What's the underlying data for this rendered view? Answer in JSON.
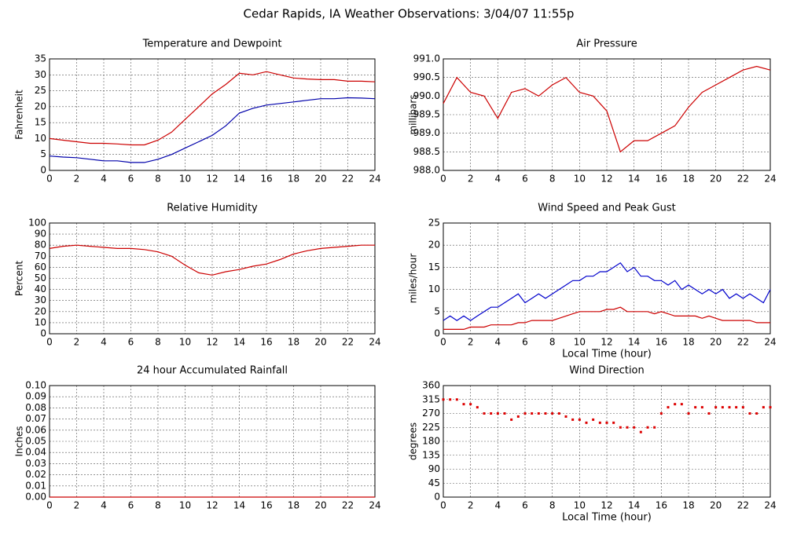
{
  "title": "Cedar Rapids, IA Weather Observations: 3/04/07 11:55p",
  "chart_data": [
    {
      "type": "line",
      "title": "Temperature and Dewpoint",
      "ylabel": "Fahrenheit",
      "x": [
        0,
        1,
        2,
        3,
        4,
        5,
        6,
        7,
        8,
        9,
        10,
        11,
        12,
        13,
        14,
        15,
        16,
        17,
        18,
        19,
        20,
        21,
        22,
        23,
        24
      ],
      "series": [
        {
          "color": "#cc0000",
          "values": [
            10,
            9.5,
            9,
            8.5,
            8.5,
            8.3,
            8,
            8,
            9.5,
            12,
            16,
            20,
            24,
            27,
            30.5,
            30,
            31,
            30,
            29,
            28.7,
            28.5,
            28.5,
            28,
            28,
            27.8
          ]
        },
        {
          "color": "#0000aa",
          "values": [
            4.5,
            4.2,
            4,
            3.5,
            3,
            3,
            2.5,
            2.5,
            3.5,
            5,
            7,
            9,
            11,
            14,
            18,
            19.5,
            20.5,
            21,
            21.5,
            22,
            22.5,
            22.5,
            22.8,
            22.7,
            22.5
          ]
        }
      ],
      "xlim": [
        0,
        24
      ],
      "xticks": [
        0,
        2,
        4,
        6,
        8,
        10,
        12,
        14,
        16,
        18,
        20,
        22,
        24
      ],
      "ylim": [
        0,
        35
      ],
      "yticks": [
        0,
        5,
        10,
        15,
        20,
        25,
        30,
        35
      ],
      "grid": true
    },
    {
      "type": "line",
      "title": "Air Pressure",
      "ylabel": "millibars",
      "x": [
        0,
        1,
        2,
        3,
        4,
        5,
        6,
        7,
        8,
        9,
        10,
        11,
        12,
        13,
        14,
        15,
        16,
        17,
        18,
        19,
        20,
        21,
        22,
        23,
        24
      ],
      "series": [
        {
          "color": "#cc0000",
          "values": [
            989.8,
            990.5,
            990.1,
            990.0,
            989.4,
            990.1,
            990.2,
            990.0,
            990.3,
            990.5,
            990.1,
            990.0,
            989.6,
            988.5,
            988.8,
            988.8,
            989.0,
            989.2,
            989.7,
            990.1,
            990.3,
            990.5,
            990.7,
            990.8,
            990.7
          ]
        }
      ],
      "xlim": [
        0,
        24
      ],
      "xticks": [
        0,
        2,
        4,
        6,
        8,
        10,
        12,
        14,
        16,
        18,
        20,
        22,
        24
      ],
      "ylim": [
        988,
        991
      ],
      "yticks": [
        {
          "value": 988,
          "label": "988.0"
        },
        {
          "value": 988.5,
          "label": "988.5"
        },
        {
          "value": 989,
          "label": "989.0"
        },
        {
          "value": 989.5,
          "label": "989.5"
        },
        {
          "value": 990,
          "label": "990.0"
        },
        {
          "value": 990.5,
          "label": "990.5"
        },
        {
          "value": 991,
          "label": "991.0"
        }
      ],
      "grid": true
    },
    {
      "type": "line",
      "title": "Relative Humidity",
      "ylabel": "Percent",
      "x": [
        0,
        1,
        2,
        3,
        4,
        5,
        6,
        7,
        8,
        9,
        10,
        11,
        12,
        13,
        14,
        15,
        16,
        17,
        18,
        19,
        20,
        21,
        22,
        23,
        24
      ],
      "series": [
        {
          "color": "#cc0000",
          "values": [
            77,
            79,
            80,
            79,
            78,
            77,
            77,
            76,
            74,
            70,
            62,
            55,
            53,
            56,
            58,
            61,
            63,
            67,
            72,
            75,
            77,
            78,
            79,
            80,
            80
          ]
        }
      ],
      "xlim": [
        0,
        24
      ],
      "xticks": [
        0,
        2,
        4,
        6,
        8,
        10,
        12,
        14,
        16,
        18,
        20,
        22,
        24
      ],
      "ylim": [
        0,
        100
      ],
      "yticks": [
        0,
        10,
        20,
        30,
        40,
        50,
        60,
        70,
        80,
        90,
        100
      ],
      "grid": true
    },
    {
      "type": "line",
      "title": "Wind Speed and Peak Gust",
      "ylabel": "miles/hour",
      "xlabel": "Local Time (hour)",
      "x": [
        0,
        0.5,
        1,
        1.5,
        2,
        2.5,
        3,
        3.5,
        4,
        4.5,
        5,
        5.5,
        6,
        6.5,
        7,
        7.5,
        8,
        8.5,
        9,
        9.5,
        10,
        10.5,
        11,
        11.5,
        12,
        12.5,
        13,
        13.5,
        14,
        14.5,
        15,
        15.5,
        16,
        16.5,
        17,
        17.5,
        18,
        18.5,
        19,
        19.5,
        20,
        20.5,
        21,
        21.5,
        22,
        22.5,
        23,
        23.5,
        24
      ],
      "series": [
        {
          "color": "#0000cc",
          "values": [
            3,
            4,
            3,
            4,
            3,
            4,
            5,
            6,
            6,
            7,
            8,
            9,
            7,
            8,
            9,
            8,
            9,
            10,
            11,
            12,
            12,
            13,
            13,
            14,
            14,
            15,
            16,
            14,
            15,
            13,
            13,
            12,
            12,
            11,
            12,
            10,
            11,
            10,
            9,
            10,
            9,
            10,
            8,
            9,
            8,
            9,
            8,
            7,
            10
          ]
        },
        {
          "color": "#cc0000",
          "values": [
            1,
            1,
            1,
            1,
            1.5,
            1.5,
            1.5,
            2,
            2,
            2,
            2,
            2.5,
            2.5,
            3,
            3,
            3,
            3,
            3.5,
            4,
            4.5,
            5,
            5,
            5,
            5,
            5.5,
            5.5,
            6,
            5,
            5,
            5,
            5,
            4.5,
            5,
            4.5,
            4,
            4,
            4,
            4,
            3.5,
            4,
            3.5,
            3,
            3,
            3,
            3,
            3,
            2.5,
            2.5,
            2.5
          ]
        }
      ],
      "xlim": [
        0,
        24
      ],
      "xticks": [
        0,
        2,
        4,
        6,
        8,
        10,
        12,
        14,
        16,
        18,
        20,
        22,
        24
      ],
      "ylim": [
        0,
        25
      ],
      "yticks": [
        0,
        5,
        10,
        15,
        20,
        25
      ],
      "grid": true
    },
    {
      "type": "line",
      "title": "24 hour Accumulated Rainfall",
      "ylabel": "Inches",
      "x": [
        0,
        1,
        2,
        3,
        4,
        5,
        6,
        7,
        8,
        9,
        10,
        11,
        12,
        13,
        14,
        15,
        16,
        17,
        18,
        19,
        20,
        21,
        22,
        23,
        24
      ],
      "series": [
        {
          "color": "#cc0000",
          "values": [
            0,
            0,
            0,
            0,
            0,
            0,
            0,
            0,
            0,
            0,
            0,
            0,
            0,
            0,
            0,
            0,
            0,
            0,
            0,
            0,
            0,
            0,
            0,
            0,
            0
          ]
        }
      ],
      "xlim": [
        0,
        24
      ],
      "xticks": [
        0,
        2,
        4,
        6,
        8,
        10,
        12,
        14,
        16,
        18,
        20,
        22,
        24
      ],
      "ylim": [
        0,
        0.1
      ],
      "yticks": [
        {
          "value": 0,
          "label": "0.00"
        },
        {
          "value": 0.01,
          "label": "0.01"
        },
        {
          "value": 0.02,
          "label": "0.02"
        },
        {
          "value": 0.03,
          "label": "0.03"
        },
        {
          "value": 0.04,
          "label": "0.04"
        },
        {
          "value": 0.05,
          "label": "0.05"
        },
        {
          "value": 0.06,
          "label": "0.06"
        },
        {
          "value": 0.07,
          "label": "0.07"
        },
        {
          "value": 0.08,
          "label": "0.08"
        },
        {
          "value": 0.09,
          "label": "0.09"
        },
        {
          "value": 0.1,
          "label": "0.10"
        }
      ],
      "grid": true
    },
    {
      "type": "scatter",
      "title": "Wind Direction",
      "ylabel": "degrees",
      "xlabel": "Local Time (hour)",
      "x": [
        0,
        0.5,
        1,
        1.5,
        2,
        2.5,
        3,
        3.5,
        4,
        4.5,
        5,
        5.5,
        6,
        6.5,
        7,
        7.5,
        8,
        8.5,
        9,
        9.5,
        10,
        10.5,
        11,
        11.5,
        12,
        12.5,
        13,
        13.5,
        14,
        14.5,
        15,
        15.5,
        16,
        16.5,
        17,
        17.5,
        18,
        18.5,
        19,
        19.5,
        20,
        20.5,
        21,
        21.5,
        22,
        22.5,
        23,
        23.5,
        24
      ],
      "series": [
        {
          "color": "#dd0000",
          "values": [
            315,
            315,
            315,
            300,
            300,
            290,
            270,
            270,
            270,
            270,
            250,
            260,
            270,
            270,
            270,
            270,
            270,
            270,
            260,
            250,
            250,
            240,
            250,
            240,
            240,
            240,
            225,
            225,
            225,
            210,
            225,
            225,
            270,
            290,
            300,
            300,
            270,
            290,
            290,
            270,
            290,
            290,
            290,
            290,
            290,
            270,
            270,
            290,
            290
          ]
        }
      ],
      "xlim": [
        0,
        24
      ],
      "xticks": [
        0,
        2,
        4,
        6,
        8,
        10,
        12,
        14,
        16,
        18,
        20,
        22,
        24
      ],
      "ylim": [
        0,
        360
      ],
      "yticks": [
        0,
        45,
        90,
        135,
        180,
        225,
        270,
        315,
        360
      ],
      "grid": true
    }
  ]
}
